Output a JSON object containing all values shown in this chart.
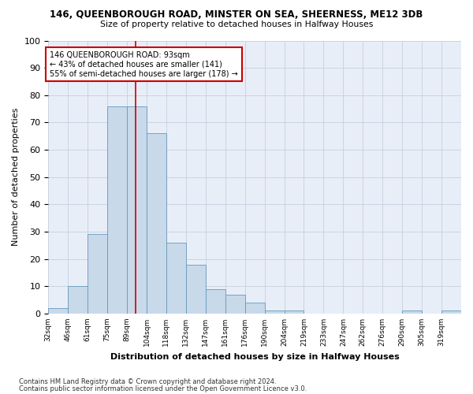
{
  "title1": "146, QUEENBOROUGH ROAD, MINSTER ON SEA, SHEERNESS, ME12 3DB",
  "title2": "Size of property relative to detached houses in Halfway Houses",
  "xlabel": "Distribution of detached houses by size in Halfway Houses",
  "ylabel": "Number of detached properties",
  "bin_labels": [
    "32sqm",
    "46sqm",
    "61sqm",
    "75sqm",
    "89sqm",
    "104sqm",
    "118sqm",
    "132sqm",
    "147sqm",
    "161sqm",
    "176sqm",
    "190sqm",
    "204sqm",
    "219sqm",
    "233sqm",
    "247sqm",
    "262sqm",
    "276sqm",
    "290sqm",
    "305sqm",
    "319sqm"
  ],
  "bar_heights": [
    2,
    10,
    29,
    76,
    76,
    66,
    26,
    18,
    9,
    7,
    4,
    1,
    1,
    0,
    0,
    0,
    0,
    0,
    1,
    0,
    1
  ],
  "bar_color": "#c8d9ea",
  "bar_edge_color": "#6699bb",
  "vline_pos": 4.43,
  "vline_color": "#cc0000",
  "annotation_text": "146 QUEENBOROUGH ROAD: 93sqm\n← 43% of detached houses are smaller (141)\n55% of semi-detached houses are larger (178) →",
  "annotation_box_color": "#ffffff",
  "annotation_box_edge": "#cc0000",
  "ylim": [
    0,
    100
  ],
  "yticks": [
    0,
    10,
    20,
    30,
    40,
    50,
    60,
    70,
    80,
    90,
    100
  ],
  "footer1": "Contains HM Land Registry data © Crown copyright and database right 2024.",
  "footer2": "Contains public sector information licensed under the Open Government Licence v3.0.",
  "bg_color": "#ffffff",
  "plot_bg_color": "#e8eef8",
  "grid_color": "#c5cfe0"
}
